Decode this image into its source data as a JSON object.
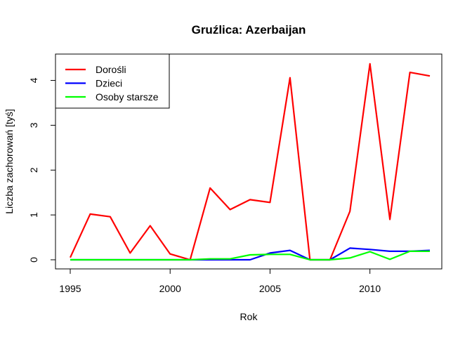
{
  "chart_data": {
    "type": "line",
    "title": "Gruźlica: Azerbaijan",
    "xlabel": "Rok",
    "ylabel": "Liczba zachorowań [tyś]",
    "xlim": [
      1995,
      2013
    ],
    "ylim": [
      0,
      4.4
    ],
    "xticks": [
      1995,
      2000,
      2005,
      2010
    ],
    "yticks": [
      0,
      1,
      2,
      3,
      4
    ],
    "grid": false,
    "legend_position": "top-left",
    "x": [
      1995,
      1996,
      1997,
      1998,
      1999,
      2000,
      2001,
      2002,
      2003,
      2004,
      2005,
      2006,
      2007,
      2008,
      2009,
      2010,
      2011,
      2012,
      2013
    ],
    "series": [
      {
        "name": "Dorośli",
        "color": "#ff0000",
        "values": [
          0.05,
          1.02,
          0.96,
          0.15,
          0.76,
          0.13,
          0.0,
          1.6,
          1.12,
          1.34,
          1.28,
          4.06,
          0.0,
          0.0,
          1.08,
          4.37,
          0.9,
          4.18,
          4.1
        ]
      },
      {
        "name": "Dzieci",
        "color": "#0000ff",
        "values": [
          0.0,
          0.0,
          0.0,
          0.0,
          0.0,
          0.0,
          0.0,
          0.0,
          0.0,
          0.0,
          0.15,
          0.21,
          0.0,
          0.0,
          0.26,
          0.23,
          0.19,
          0.19,
          0.21
        ]
      },
      {
        "name": "Osoby starsze",
        "color": "#00ff00",
        "values": [
          0.0,
          0.0,
          0.0,
          0.0,
          0.0,
          0.0,
          0.0,
          0.02,
          0.02,
          0.11,
          0.12,
          0.12,
          0.0,
          0.0,
          0.04,
          0.18,
          0.01,
          0.19,
          0.19
        ]
      }
    ]
  }
}
